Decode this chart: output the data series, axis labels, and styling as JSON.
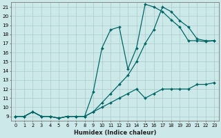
{
  "xlabel": "Humidex (Indice chaleur)",
  "bg_color": "#cce8e8",
  "line_color": "#006666",
  "grid_color": "#aacccc",
  "xlim": [
    -0.5,
    23.5
  ],
  "ylim": [
    8.5,
    21.5
  ],
  "yticks": [
    9,
    10,
    11,
    12,
    13,
    14,
    15,
    16,
    17,
    18,
    19,
    20,
    21
  ],
  "xticks": [
    0,
    1,
    2,
    3,
    4,
    5,
    6,
    7,
    8,
    9,
    10,
    11,
    12,
    13,
    14,
    15,
    16,
    17,
    18,
    19,
    20,
    21,
    22,
    23
  ],
  "line1_x": [
    0,
    1,
    2,
    3,
    4,
    5,
    6,
    7,
    8,
    9,
    10,
    11,
    12,
    13,
    14,
    15,
    16,
    17,
    18,
    19,
    20,
    21,
    22,
    23
  ],
  "line1_y": [
    9,
    9,
    9.5,
    9,
    9,
    8.8,
    9,
    9,
    9,
    9.5,
    10,
    10.5,
    11,
    11.5,
    12,
    11,
    11.5,
    12,
    12,
    12,
    12,
    12.5,
    12.5,
    12.7
  ],
  "line2_x": [
    0,
    1,
    2,
    3,
    4,
    5,
    6,
    7,
    8,
    9,
    10,
    11,
    12,
    13,
    14,
    15,
    16,
    17,
    18,
    19,
    20,
    21,
    22,
    23
  ],
  "line2_y": [
    9,
    9,
    9.5,
    9,
    9,
    8.8,
    9,
    9,
    9,
    11.7,
    16.5,
    18.5,
    18.8,
    14.2,
    16.5,
    21.3,
    21.0,
    20.5,
    19.6,
    18.8,
    17.3,
    17.3,
    17.2,
    17.3
  ],
  "line3_x": [
    0,
    1,
    2,
    3,
    4,
    5,
    6,
    7,
    8,
    9,
    10,
    11,
    12,
    13,
    14,
    15,
    16,
    17,
    18,
    19,
    20,
    21,
    22,
    23
  ],
  "line3_y": [
    9,
    9,
    9.5,
    9,
    9,
    8.8,
    9,
    9,
    9,
    9.5,
    10.5,
    11.5,
    12.5,
    13.5,
    15,
    17,
    18.5,
    21.0,
    20.5,
    19.5,
    18.8,
    17.5,
    17.3,
    17.3
  ]
}
